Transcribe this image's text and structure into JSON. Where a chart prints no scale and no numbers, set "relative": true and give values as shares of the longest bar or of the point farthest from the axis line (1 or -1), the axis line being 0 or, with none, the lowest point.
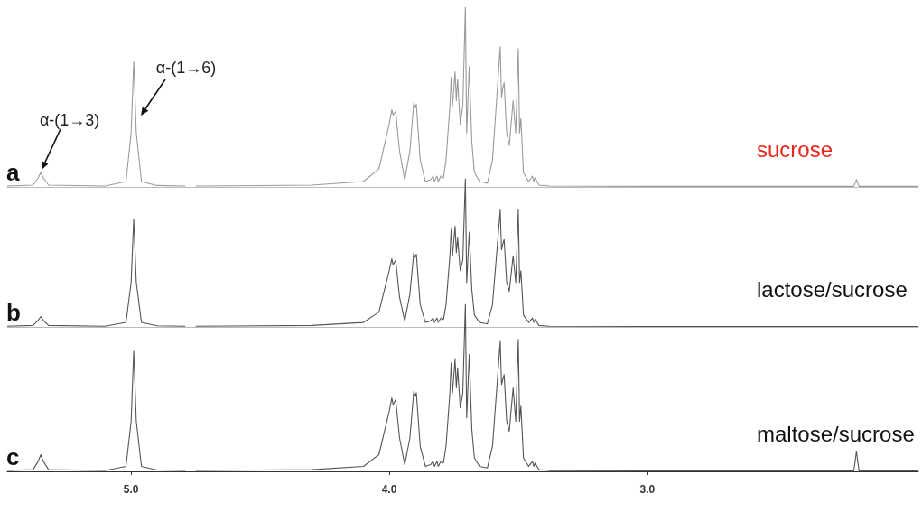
{
  "chart_data": [
    {
      "type": "line",
      "title": "a",
      "relative": true,
      "marker": "none",
      "tick_labels": false,
      "xlim": [
        5.48,
        1.95
      ],
      "annotations": [
        "sucrose",
        {
          "text": "α-(1→3)",
          "x": 5.35,
          "y": 0.08
        },
        {
          "text": "α-(1→6)",
          "x": 4.99,
          "y": 0.7
        }
      ],
      "x": [
        5.48,
        5.38,
        5.36,
        5.35,
        5.34,
        5.32,
        5.1,
        5.02,
        5.0,
        4.99,
        4.98,
        4.96,
        4.9,
        4.79,
        4.77,
        4.75,
        4.3,
        4.1,
        4.04,
        4.0,
        3.99,
        3.985,
        3.975,
        3.96,
        3.94,
        3.92,
        3.905,
        3.9,
        3.895,
        3.88,
        3.86,
        3.84,
        3.83,
        3.825,
        3.815,
        3.81,
        3.8,
        3.79,
        3.78,
        3.765,
        3.76,
        3.755,
        3.745,
        3.74,
        3.735,
        3.725,
        3.715,
        3.705,
        3.7,
        3.69,
        3.68,
        3.67,
        3.65,
        3.62,
        3.6,
        3.57,
        3.565,
        3.56,
        3.555,
        3.545,
        3.535,
        3.52,
        3.51,
        3.5,
        3.495,
        3.49,
        3.48,
        3.46,
        3.445,
        3.44,
        3.435,
        3.42,
        3.38,
        3.0,
        2.5,
        2.2,
        2.19,
        2.18,
        1.95
      ],
      "series": [
        {
          "color": "#9a9a9a",
          "values": [
            0.005,
            0.01,
            0.05,
            0.08,
            0.05,
            0.01,
            0.005,
            0.03,
            0.3,
            0.7,
            0.3,
            0.03,
            0.008,
            0.005,
            null,
            0.005,
            0.01,
            0.03,
            0.1,
            0.35,
            0.43,
            0.4,
            0.42,
            0.2,
            0.04,
            0.2,
            0.47,
            0.44,
            0.46,
            0.15,
            0.03,
            0.04,
            0.06,
            0.03,
            0.06,
            0.03,
            0.06,
            0.05,
            0.15,
            0.45,
            0.61,
            0.45,
            0.64,
            0.48,
            0.6,
            0.35,
            0.45,
            1,
            0.3,
            0.67,
            0.25,
            0.08,
            0.03,
            0.02,
            0.15,
            0.78,
            0.5,
            0.55,
            0.58,
            0.3,
            0.23,
            0.48,
            0.3,
            0.77,
            0.3,
            0.38,
            0.08,
            0.03,
            0.06,
            0.03,
            0.05,
            0.01,
            0.005,
            0.003,
            0.003,
            0.003,
            0.04,
            0.003,
            0.003
          ]
        }
      ]
    },
    {
      "type": "line",
      "title": "b",
      "relative": true,
      "marker": "none",
      "tick_labels": false,
      "xlim": [
        5.48,
        1.95
      ],
      "annotations": [
        "lactose/sucrose"
      ],
      "x": [
        5.48,
        5.38,
        5.36,
        5.35,
        5.34,
        5.32,
        5.1,
        5.02,
        5.0,
        4.99,
        4.98,
        4.96,
        4.9,
        4.79,
        4.77,
        4.75,
        4.3,
        4.1,
        4.04,
        4.0,
        3.99,
        3.985,
        3.975,
        3.96,
        3.94,
        3.92,
        3.905,
        3.9,
        3.895,
        3.88,
        3.86,
        3.84,
        3.83,
        3.825,
        3.815,
        3.81,
        3.8,
        3.79,
        3.78,
        3.765,
        3.76,
        3.755,
        3.745,
        3.74,
        3.735,
        3.725,
        3.715,
        3.705,
        3.7,
        3.69,
        3.68,
        3.67,
        3.65,
        3.62,
        3.6,
        3.57,
        3.565,
        3.56,
        3.555,
        3.545,
        3.535,
        3.52,
        3.51,
        3.5,
        3.495,
        3.49,
        3.48,
        3.46,
        3.445,
        3.44,
        3.435,
        3.42,
        3.38,
        3.0,
        2.5,
        2.2,
        2.19,
        2.18,
        1.95
      ],
      "series": [
        {
          "color": "#555555",
          "values": [
            0.005,
            0.01,
            0.045,
            0.07,
            0.045,
            0.01,
            0.005,
            0.03,
            0.3,
            0.73,
            0.3,
            0.03,
            0.008,
            0.005,
            null,
            0.005,
            0.01,
            0.03,
            0.1,
            0.38,
            0.46,
            0.42,
            0.45,
            0.2,
            0.04,
            0.22,
            0.5,
            0.47,
            0.49,
            0.15,
            0.03,
            0.04,
            0.06,
            0.03,
            0.06,
            0.03,
            0.06,
            0.05,
            0.15,
            0.48,
            0.66,
            0.48,
            0.68,
            0.5,
            0.6,
            0.38,
            0.45,
            1,
            0.3,
            0.64,
            0.25,
            0.08,
            0.03,
            0.02,
            0.15,
            0.79,
            0.52,
            0.56,
            0.59,
            0.3,
            0.24,
            0.48,
            0.3,
            0.79,
            0.3,
            0.38,
            0.08,
            0.03,
            0.06,
            0.03,
            0.05,
            0.01,
            0.005,
            0.003,
            0.003,
            0.003,
            0.003,
            0.003,
            0.003
          ]
        }
      ]
    },
    {
      "type": "line",
      "title": "c",
      "relative": true,
      "marker": "none",
      "tick_labels": "x",
      "xlim": [
        5.48,
        1.95
      ],
      "xticks": [
        {
          "value": 5,
          "label": "5.0"
        },
        {
          "value": 4,
          "label": "4.0"
        },
        {
          "value": 3,
          "label": "3.0"
        }
      ],
      "annotations": [
        "maltose/sucrose"
      ],
      "x": [
        5.48,
        5.38,
        5.36,
        5.35,
        5.34,
        5.32,
        5.1,
        5.02,
        5.0,
        4.99,
        4.98,
        4.96,
        4.9,
        4.79,
        4.77,
        4.75,
        4.3,
        4.1,
        4.04,
        4.0,
        3.99,
        3.985,
        3.975,
        3.96,
        3.94,
        3.92,
        3.905,
        3.9,
        3.895,
        3.88,
        3.86,
        3.84,
        3.83,
        3.825,
        3.815,
        3.81,
        3.8,
        3.79,
        3.78,
        3.765,
        3.76,
        3.755,
        3.745,
        3.74,
        3.735,
        3.725,
        3.715,
        3.705,
        3.7,
        3.69,
        3.68,
        3.67,
        3.65,
        3.62,
        3.6,
        3.57,
        3.565,
        3.56,
        3.555,
        3.545,
        3.535,
        3.52,
        3.51,
        3.5,
        3.495,
        3.49,
        3.48,
        3.46,
        3.445,
        3.44,
        3.435,
        3.42,
        3.38,
        3.0,
        2.5,
        2.2,
        2.19,
        2.18,
        1.95
      ],
      "series": [
        {
          "color": "#555555",
          "values": [
            0.005,
            0.01,
            0.06,
            0.1,
            0.06,
            0.01,
            0.005,
            0.03,
            0.3,
            0.72,
            0.3,
            0.03,
            0.008,
            0.005,
            null,
            0.005,
            0.01,
            0.03,
            0.1,
            0.36,
            0.44,
            0.4,
            0.43,
            0.2,
            0.04,
            0.2,
            0.48,
            0.45,
            0.47,
            0.15,
            0.03,
            0.04,
            0.06,
            0.03,
            0.06,
            0.03,
            0.06,
            0.05,
            0.15,
            0.47,
            0.65,
            0.47,
            0.67,
            0.5,
            0.62,
            0.38,
            0.47,
            1,
            0.32,
            0.7,
            0.25,
            0.08,
            0.03,
            0.02,
            0.15,
            0.78,
            0.52,
            0.55,
            0.58,
            0.3,
            0.24,
            0.5,
            0.3,
            0.79,
            0.3,
            0.39,
            0.08,
            0.03,
            0.06,
            0.03,
            0.05,
            0.01,
            0.005,
            0.003,
            0.003,
            0.003,
            0.12,
            0.003,
            0.003
          ]
        }
      ]
    }
  ]
}
